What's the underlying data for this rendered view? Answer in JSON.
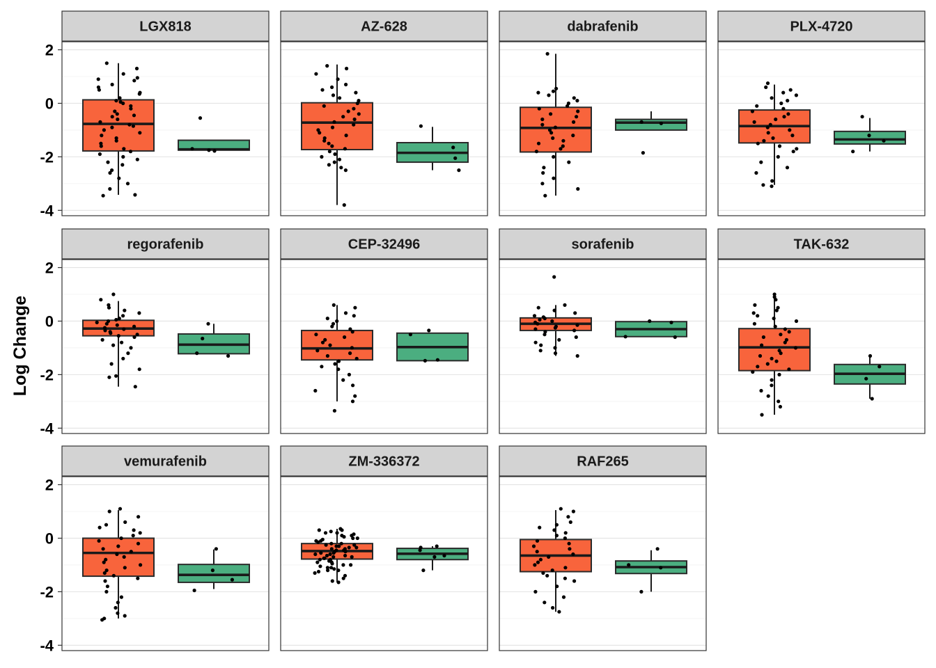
{
  "chart_data": {
    "type": "boxplot",
    "ylabel": "Log Change",
    "xlabel": "",
    "ylim": [
      -4.2,
      2.3
    ],
    "yticks": [
      2,
      0,
      -2,
      -4
    ],
    "ytick_labels": [
      "2",
      "0",
      "-2",
      "-4"
    ],
    "grid": true,
    "legend": "none",
    "colors": {
      "group1": "#F8643C",
      "group2": "#4BAE80",
      "strip": "#D3D3D3"
    },
    "panels": [
      {
        "name": "LGX818",
        "boxes": [
          {
            "group": 1,
            "q1": -1.78,
            "median": -0.77,
            "q3": 0.13,
            "whisker_low": -3.42,
            "whisker_high": 1.5,
            "points": [
              1.5,
              1.3,
              1.1,
              0.95,
              0.9,
              0.85,
              0.7,
              0.6,
              0.5,
              0.4,
              0.35,
              0.2,
              0.1,
              0.05,
              0.0,
              -0.1,
              -0.2,
              -0.3,
              -0.4,
              -0.45,
              -0.5,
              -0.6,
              -0.7,
              -0.8,
              -0.85,
              -0.9,
              -1.0,
              -1.1,
              -1.2,
              -1.3,
              -1.4,
              -1.5,
              -1.6,
              -1.7,
              -1.8,
              -1.9,
              -2.0,
              -2.1,
              -2.2,
              -2.3,
              -2.5,
              -2.6,
              -2.8,
              -3.0,
              -3.2,
              -3.45,
              -3.42
            ]
          },
          {
            "group": 2,
            "q1": -1.75,
            "median": -1.72,
            "q3": -1.38,
            "whisker_low": -1.8,
            "whisker_high": -1.38,
            "points": [
              -0.55,
              -1.7,
              -1.78,
              -1.75
            ]
          }
        ]
      },
      {
        "name": "AZ-628",
        "boxes": [
          {
            "group": 1,
            "q1": -1.73,
            "median": -0.72,
            "q3": 0.02,
            "whisker_low": -3.8,
            "whisker_high": 1.45,
            "points": [
              1.4,
              1.3,
              1.1,
              0.9,
              0.7,
              0.6,
              0.5,
              0.4,
              0.3,
              0.2,
              0.1,
              0.0,
              -0.1,
              -0.2,
              -0.3,
              -0.4,
              -0.5,
              -0.6,
              -0.7,
              -0.8,
              -0.9,
              -1.0,
              -1.1,
              -1.2,
              -1.3,
              -1.4,
              -1.5,
              -1.6,
              -1.7,
              -1.8,
              -1.9,
              -2.0,
              -2.1,
              -2.2,
              -2.3,
              -2.4,
              -2.5,
              -3.8
            ]
          },
          {
            "group": 2,
            "q1": -2.2,
            "median": -1.85,
            "q3": -1.47,
            "whisker_low": -2.5,
            "whisker_high": -0.88,
            "points": [
              -0.85,
              -1.65,
              -2.05,
              -2.5
            ]
          }
        ]
      },
      {
        "name": "dabrafenib",
        "boxes": [
          {
            "group": 1,
            "q1": -1.82,
            "median": -0.92,
            "q3": -0.15,
            "whisker_low": -3.45,
            "whisker_high": 1.85,
            "points": [
              1.85,
              0.55,
              0.45,
              0.4,
              0.3,
              0.2,
              0.1,
              0.0,
              -0.1,
              -0.2,
              -0.3,
              -0.4,
              -0.5,
              -0.6,
              -0.7,
              -0.8,
              -0.9,
              -1.0,
              -1.1,
              -1.2,
              -1.3,
              -1.4,
              -1.5,
              -1.6,
              -1.7,
              -1.8,
              -2.0,
              -2.2,
              -2.4,
              -2.6,
              -2.8,
              -3.0,
              -3.2,
              -3.45
            ]
          },
          {
            "group": 2,
            "q1": -1.0,
            "median": -0.72,
            "q3": -0.6,
            "whisker_low": -1.0,
            "whisker_high": -0.3,
            "points": [
              -0.7,
              -0.75,
              -1.85
            ]
          }
        ]
      },
      {
        "name": "PLX-4720",
        "boxes": [
          {
            "group": 1,
            "q1": -1.48,
            "median": -0.85,
            "q3": -0.25,
            "whisker_low": -3.05,
            "whisker_high": 0.7,
            "points": [
              0.75,
              0.6,
              0.5,
              0.4,
              0.3,
              0.2,
              0.1,
              0.0,
              -0.1,
              -0.2,
              -0.3,
              -0.4,
              -0.5,
              -0.6,
              -0.7,
              -0.8,
              -0.9,
              -1.0,
              -1.1,
              -1.2,
              -1.3,
              -1.4,
              -1.5,
              -1.6,
              -1.7,
              -1.8,
              -2.0,
              -2.2,
              -2.4,
              -2.6,
              -2.9,
              -3.05,
              -3.1
            ]
          },
          {
            "group": 2,
            "q1": -1.52,
            "median": -1.35,
            "q3": -1.05,
            "whisker_low": -1.8,
            "whisker_high": -0.55,
            "points": [
              -0.5,
              -1.2,
              -1.4,
              -1.8
            ]
          }
        ]
      },
      {
        "name": "regorafenib",
        "boxes": [
          {
            "group": 1,
            "q1": -0.55,
            "median": -0.28,
            "q3": 0.03,
            "whisker_low": -2.45,
            "whisker_high": 0.75,
            "points": [
              1.0,
              0.8,
              0.6,
              0.5,
              0.4,
              0.3,
              0.2,
              0.1,
              0.05,
              0.0,
              -0.05,
              -0.1,
              -0.15,
              -0.2,
              -0.25,
              -0.3,
              -0.35,
              -0.4,
              -0.45,
              -0.5,
              -0.55,
              -0.6,
              -0.7,
              -0.8,
              -0.9,
              -1.0,
              -1.2,
              -1.4,
              -1.6,
              -1.8,
              -2.05,
              -2.1,
              -2.45
            ]
          },
          {
            "group": 2,
            "q1": -1.22,
            "median": -0.88,
            "q3": -0.48,
            "whisker_low": -1.22,
            "whisker_high": -0.1,
            "points": [
              -0.1,
              -0.65,
              -1.2,
              -1.3
            ]
          }
        ]
      },
      {
        "name": "CEP-32496",
        "boxes": [
          {
            "group": 1,
            "q1": -1.45,
            "median": -1.02,
            "q3": -0.35,
            "whisker_low": -3.0,
            "whisker_high": 0.6,
            "points": [
              0.6,
              0.5,
              0.3,
              0.2,
              0.1,
              0.0,
              -0.1,
              -0.2,
              -0.3,
              -0.4,
              -0.5,
              -0.6,
              -0.7,
              -0.8,
              -0.9,
              -1.0,
              -1.1,
              -1.2,
              -1.3,
              -1.4,
              -1.5,
              -1.6,
              -1.7,
              -1.8,
              -2.0,
              -2.2,
              -2.4,
              -2.6,
              -2.8,
              -3.0,
              -3.35
            ]
          },
          {
            "group": 2,
            "q1": -1.48,
            "median": -0.97,
            "q3": -0.45,
            "whisker_low": -1.48,
            "whisker_high": -0.45,
            "points": [
              -0.35,
              -0.5,
              -1.45,
              -1.48
            ]
          }
        ]
      },
      {
        "name": "sorafenib",
        "boxes": [
          {
            "group": 1,
            "q1": -0.35,
            "median": -0.1,
            "q3": 0.12,
            "whisker_low": -1.3,
            "whisker_high": 0.6,
            "points": [
              1.65,
              0.6,
              0.5,
              0.4,
              0.3,
              0.2,
              0.15,
              0.1,
              0.05,
              0.0,
              -0.05,
              -0.1,
              -0.15,
              -0.2,
              -0.25,
              -0.3,
              -0.35,
              -0.4,
              -0.5,
              -0.6,
              -0.7,
              -0.8,
              -0.9,
              -1.0,
              -1.1,
              -1.2,
              -1.3
            ]
          },
          {
            "group": 2,
            "q1": -0.58,
            "median": -0.3,
            "q3": -0.02,
            "whisker_low": -0.6,
            "whisker_high": 0.0,
            "points": [
              0.0,
              -0.05,
              -0.58,
              -0.6
            ]
          }
        ]
      },
      {
        "name": "TAK-632",
        "boxes": [
          {
            "group": 1,
            "q1": -1.85,
            "median": -0.98,
            "q3": -0.28,
            "whisker_low": -3.5,
            "whisker_high": 0.95,
            "points": [
              1.0,
              0.9,
              0.8,
              0.6,
              0.5,
              0.4,
              0.3,
              0.2,
              0.1,
              0.0,
              -0.1,
              -0.2,
              -0.3,
              -0.4,
              -0.5,
              -0.6,
              -0.7,
              -0.8,
              -0.9,
              -1.0,
              -1.1,
              -1.2,
              -1.3,
              -1.4,
              -1.5,
              -1.6,
              -1.7,
              -1.8,
              -1.9,
              -2.0,
              -2.2,
              -2.4,
              -2.6,
              -2.8,
              -3.0,
              -3.2,
              -3.5
            ]
          },
          {
            "group": 2,
            "q1": -2.35,
            "median": -1.97,
            "q3": -1.62,
            "whisker_low": -2.9,
            "whisker_high": -1.3,
            "points": [
              -1.3,
              -1.7,
              -2.15,
              -2.9
            ]
          }
        ]
      },
      {
        "name": "vemurafenib",
        "boxes": [
          {
            "group": 1,
            "q1": -1.42,
            "median": -0.55,
            "q3": 0.0,
            "whisker_low": -3.0,
            "whisker_high": 1.05,
            "points": [
              1.1,
              1.0,
              0.8,
              0.6,
              0.5,
              0.4,
              0.3,
              0.2,
              0.1,
              0.0,
              -0.1,
              -0.2,
              -0.3,
              -0.4,
              -0.5,
              -0.6,
              -0.7,
              -0.8,
              -0.9,
              -1.0,
              -1.1,
              -1.2,
              -1.3,
              -1.4,
              -1.5,
              -1.6,
              -1.8,
              -2.0,
              -2.2,
              -2.4,
              -2.6,
              -2.8,
              -2.9,
              -3.0,
              -3.05
            ]
          },
          {
            "group": 2,
            "q1": -1.65,
            "median": -1.37,
            "q3": -0.98,
            "whisker_low": -1.9,
            "whisker_high": -0.42,
            "points": [
              -0.4,
              -1.2,
              -1.55,
              -1.95
            ]
          }
        ]
      },
      {
        "name": "ZM-336372",
        "boxes": [
          {
            "group": 1,
            "q1": -0.78,
            "median": -0.48,
            "q3": -0.2,
            "whisker_low": -1.65,
            "whisker_high": 0.35,
            "points": [
              0.35,
              0.3,
              0.25,
              0.2,
              0.15,
              0.1,
              0.05,
              0.0,
              -0.05,
              -0.1,
              -0.15,
              -0.2,
              -0.25,
              -0.3,
              -0.35,
              -0.4,
              -0.45,
              -0.5,
              -0.55,
              -0.6,
              -0.65,
              -0.7,
              -0.75,
              -0.8,
              -0.85,
              -0.9,
              -0.95,
              -1.0,
              -1.05,
              -1.1,
              -1.15,
              -1.2,
              -1.25,
              -1.3,
              -1.4,
              -1.5,
              -1.6,
              -1.65,
              0.3,
              0.2,
              0.1,
              0.0,
              -0.1,
              -0.2,
              -0.3,
              -0.4,
              -0.5,
              -0.6,
              -0.7,
              -0.8,
              -0.9,
              -1.0,
              -1.1,
              -1.2,
              -0.45,
              -0.55,
              -0.35,
              -0.65,
              -0.25,
              -0.75
            ]
          },
          {
            "group": 2,
            "q1": -0.8,
            "median": -0.58,
            "q3": -0.38,
            "whisker_low": -1.2,
            "whisker_high": -0.3,
            "points": [
              -0.3,
              -0.35,
              -0.45,
              -0.65,
              -0.7,
              -1.2
            ]
          }
        ]
      },
      {
        "name": "RAF265",
        "boxes": [
          {
            "group": 1,
            "q1": -1.25,
            "median": -0.65,
            "q3": -0.05,
            "whisker_low": -2.75,
            "whisker_high": 1.05,
            "points": [
              1.1,
              1.0,
              0.8,
              0.6,
              0.5,
              0.4,
              0.3,
              0.2,
              0.1,
              0.0,
              -0.1,
              -0.2,
              -0.3,
              -0.4,
              -0.5,
              -0.6,
              -0.7,
              -0.8,
              -0.9,
              -1.0,
              -1.1,
              -1.2,
              -1.3,
              -1.4,
              -1.5,
              -1.6,
              -1.8,
              -2.0,
              -2.2,
              -2.4,
              -2.6,
              -2.75
            ]
          },
          {
            "group": 2,
            "q1": -1.32,
            "median": -1.08,
            "q3": -0.85,
            "whisker_low": -2.0,
            "whisker_high": -0.45,
            "points": [
              -0.4,
              -1.0,
              -1.1,
              -2.0
            ]
          }
        ]
      }
    ]
  }
}
